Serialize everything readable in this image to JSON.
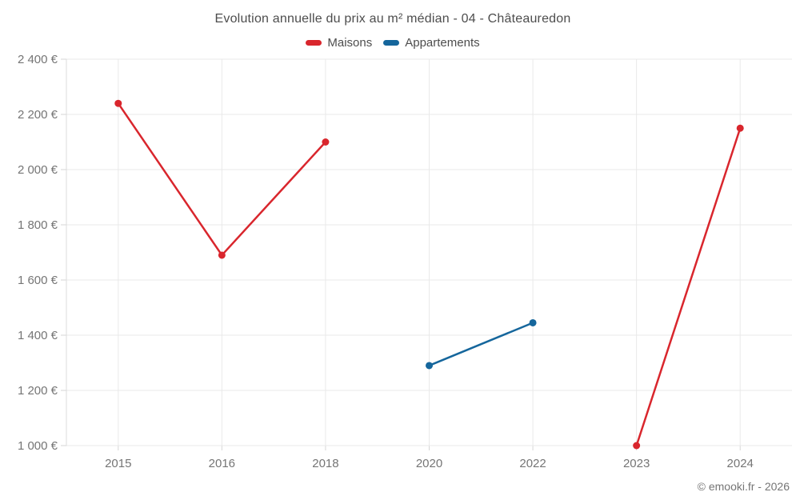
{
  "title": "Evolution annuelle du prix au m² médian - 04 - Châteauredon",
  "legend": [
    {
      "label": "Maisons",
      "color": "#d9262d"
    },
    {
      "label": "Appartements",
      "color": "#15669c"
    }
  ],
  "footer": "© emooki.fr - 2026",
  "colors": {
    "maisons": "#d9262d",
    "appartements": "#15669c",
    "gridline": "#e9e9e9",
    "axis_line": "#dcdcdc",
    "tick": "#d6d6d6",
    "tick_label": "#757575"
  },
  "chart_data": {
    "type": "line",
    "categories": [
      "2015",
      "2016",
      "2018",
      "2020",
      "2022",
      "2023",
      "2024"
    ],
    "series": [
      {
        "name": "Maisons",
        "color": "#d9262d",
        "values": [
          2240,
          1690,
          2100,
          null,
          null,
          1000,
          2150
        ]
      },
      {
        "name": "Appartements",
        "color": "#15669c",
        "values": [
          null,
          null,
          null,
          1290,
          1445,
          null,
          null
        ]
      }
    ],
    "title": "Evolution annuelle du prix au m² médian - 04 - Châteauredon",
    "xlabel": "",
    "ylabel": "",
    "ylim": [
      1000,
      2400
    ],
    "ytick_step": 200,
    "yticks": [
      1000,
      1200,
      1400,
      1600,
      1800,
      2000,
      2200,
      2400
    ],
    "ytick_suffix": " €",
    "grid": true,
    "legend_position": "top"
  }
}
